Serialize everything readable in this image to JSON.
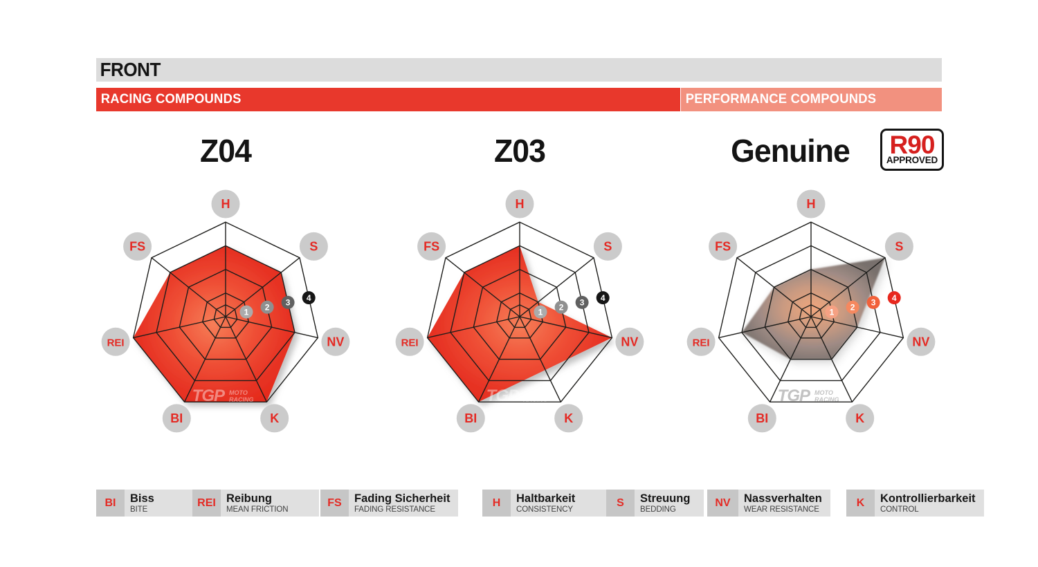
{
  "header": {
    "title": "FRONT",
    "racing_label": "RACING COMPOUNDS",
    "performance_label": "PERFORMANCE COMPOUNDS"
  },
  "charts": [
    {
      "title": "Z04",
      "fill": "racing",
      "badge_style": "gray"
    },
    {
      "title": "Z03",
      "fill": "racing",
      "badge_style": "gray"
    },
    {
      "title": "Genuine",
      "fill": "genuine",
      "badge_style": "red",
      "approved_badge": {
        "line1": "R90",
        "line2": "APPROVED"
      }
    }
  ],
  "radar": {
    "axes_order": [
      "H",
      "S",
      "NV",
      "K",
      "BI",
      "REI",
      "FS"
    ],
    "scale_labels": [
      "1",
      "2",
      "3",
      "4"
    ],
    "rings": [
      0.5,
      1,
      2,
      3,
      4
    ],
    "scale_max": 4
  },
  "chart_data": [
    {
      "type": "radar",
      "title": "Z04",
      "axes": [
        "H",
        "S",
        "NV",
        "K",
        "BI",
        "REI",
        "FS"
      ],
      "values": [
        3,
        3,
        3,
        4,
        4,
        4,
        3
      ],
      "scale": [
        0,
        4
      ]
    },
    {
      "type": "radar",
      "title": "Z03",
      "axes": [
        "H",
        "S",
        "NV",
        "K",
        "BI",
        "REI",
        "FS"
      ],
      "values": [
        3,
        1,
        4,
        2.5,
        4,
        4,
        3
      ],
      "scale": [
        0,
        4
      ],
      "note": "polygon edge runs straight from NV(4) to BI(4); K lies on that chord"
    },
    {
      "type": "radar",
      "title": "Genuine",
      "axes": [
        "H",
        "S",
        "NV",
        "K",
        "BI",
        "REI",
        "FS"
      ],
      "values": [
        2,
        4,
        2,
        2,
        2,
        3,
        2
      ],
      "scale": [
        0,
        4
      ]
    }
  ],
  "watermark": {
    "logo": "TGP",
    "line1": "MOTO",
    "line2": "RACING"
  },
  "legend": [
    {
      "abbr": "BI",
      "german": "Biss",
      "english": "BITE"
    },
    {
      "abbr": "REI",
      "german": "Reibung",
      "english": "MEAN FRICTION"
    },
    {
      "abbr": "FS",
      "german": "Fading Sicherheit",
      "english": "FADING RESISTANCE"
    },
    {
      "abbr": "H",
      "german": "Haltbarkeit",
      "english": "CONSISTENCY"
    },
    {
      "abbr": "S",
      "german": "Streuung",
      "english": "BEDDING"
    },
    {
      "abbr": "NV",
      "german": "Nassverhalten",
      "english": "WEAR RESISTANCE"
    },
    {
      "abbr": "K",
      "german": "Kontrollierbarkeit",
      "english": "CONTROL"
    }
  ],
  "colors": {
    "header_bar_gray": "#dcdcdc",
    "racing_red": "#e8382c",
    "performance_salmon": "#f2917f",
    "title_black": "#141414",
    "r90_red": "#d6201e",
    "label_circle_gray": "#cbcbcb",
    "label_text_red": "#e42a24",
    "grid_line": "#1d1d1b",
    "badge_grays": [
      "#ababab",
      "#8f8f8f",
      "#606060",
      "#161616"
    ],
    "badge_reds": [
      "#f5a183",
      "#f5885f",
      "#f2613a",
      "#e8281e"
    ],
    "racing_gradient": [
      [
        "0%",
        "#f67e58"
      ],
      [
        "45%",
        "#ef5036"
      ],
      [
        "80%",
        "#e73425"
      ],
      [
        "100%",
        "#e52b1c"
      ]
    ],
    "genuine_gradient": [
      [
        "0%",
        "#efa074"
      ],
      [
        "38%",
        "#c69378"
      ],
      [
        "68%",
        "#97827b"
      ],
      [
        "100%",
        "#6e6662"
      ]
    ],
    "legend_abbr_bg": "#c6c6c6",
    "legend_text_bg": "#e0e0e0",
    "watermark_on_fill": "#ffffff",
    "watermark_on_white": "#9a9a9a"
  }
}
